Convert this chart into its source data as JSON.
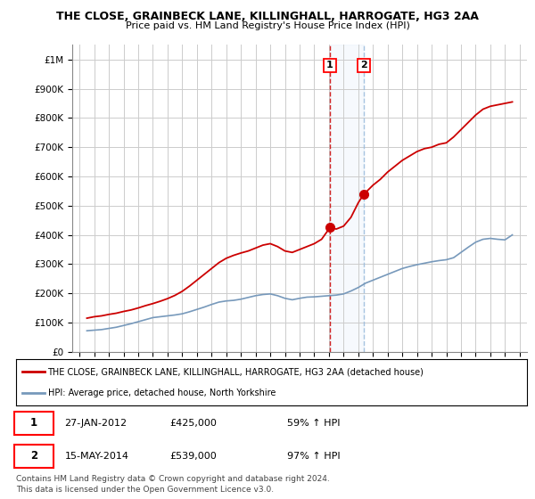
{
  "title": "THE CLOSE, GRAINBECK LANE, KILLINGHALL, HARROGATE, HG3 2AA",
  "subtitle": "Price paid vs. HM Land Registry's House Price Index (HPI)",
  "ylabel_ticks": [
    "£0",
    "£100K",
    "£200K",
    "£300K",
    "£400K",
    "£500K",
    "£600K",
    "£700K",
    "£800K",
    "£900K",
    "£1M"
  ],
  "ytick_values": [
    0,
    100000,
    200000,
    300000,
    400000,
    500000,
    600000,
    700000,
    800000,
    900000,
    1000000
  ],
  "ylim": [
    0,
    1050000
  ],
  "xlim_start": 1994.5,
  "xlim_end": 2025.5,
  "red_line_color": "#cc0000",
  "blue_line_color": "#7799bb",
  "point1_x": 2012.07,
  "point1_y": 425000,
  "point2_x": 2014.37,
  "point2_y": 539000,
  "legend_line1": "THE CLOSE, GRAINBECK LANE, KILLINGHALL, HARROGATE, HG3 2AA (detached house)",
  "legend_line2": "HPI: Average price, detached house, North Yorkshire",
  "table_row1": [
    "1",
    "27-JAN-2012",
    "£425,000",
    "59% ↑ HPI"
  ],
  "table_row2": [
    "2",
    "15-MAY-2014",
    "£539,000",
    "97% ↑ HPI"
  ],
  "footer": "Contains HM Land Registry data © Crown copyright and database right 2024.\nThis data is licensed under the Open Government Licence v3.0.",
  "red_data_x": [
    1995.5,
    1996.0,
    1996.5,
    1997.0,
    1997.5,
    1998.0,
    1998.5,
    1999.0,
    1999.5,
    2000.0,
    2000.5,
    2001.0,
    2001.5,
    2002.0,
    2002.5,
    2003.0,
    2003.5,
    2004.0,
    2004.5,
    2005.0,
    2005.5,
    2006.0,
    2006.5,
    2007.0,
    2007.5,
    2008.0,
    2008.5,
    2009.0,
    2009.5,
    2010.0,
    2010.5,
    2011.0,
    2011.5,
    2012.07,
    2012.5,
    2013.0,
    2013.5,
    2014.0,
    2014.37,
    2014.5,
    2015.0,
    2015.5,
    2016.0,
    2016.5,
    2017.0,
    2017.5,
    2018.0,
    2018.5,
    2019.0,
    2019.5,
    2020.0,
    2020.5,
    2021.0,
    2021.5,
    2022.0,
    2022.5,
    2023.0,
    2023.5,
    2024.0,
    2024.5
  ],
  "red_data_y": [
    115000,
    120000,
    123000,
    128000,
    132000,
    138000,
    143000,
    150000,
    158000,
    165000,
    173000,
    182000,
    193000,
    207000,
    225000,
    245000,
    265000,
    285000,
    305000,
    320000,
    330000,
    338000,
    345000,
    355000,
    365000,
    370000,
    360000,
    345000,
    340000,
    350000,
    360000,
    370000,
    385000,
    425000,
    420000,
    430000,
    460000,
    510000,
    539000,
    545000,
    570000,
    590000,
    615000,
    635000,
    655000,
    670000,
    685000,
    695000,
    700000,
    710000,
    715000,
    735000,
    760000,
    785000,
    810000,
    830000,
    840000,
    845000,
    850000,
    855000
  ],
  "blue_data_x": [
    1995.5,
    1996.0,
    1996.5,
    1997.0,
    1997.5,
    1998.0,
    1998.5,
    1999.0,
    1999.5,
    2000.0,
    2000.5,
    2001.0,
    2001.5,
    2002.0,
    2002.5,
    2003.0,
    2003.5,
    2004.0,
    2004.5,
    2005.0,
    2005.5,
    2006.0,
    2006.5,
    2007.0,
    2007.5,
    2008.0,
    2008.5,
    2009.0,
    2009.5,
    2010.0,
    2010.5,
    2011.0,
    2011.5,
    2012.0,
    2012.5,
    2013.0,
    2013.5,
    2014.0,
    2014.5,
    2015.0,
    2015.5,
    2016.0,
    2016.5,
    2017.0,
    2017.5,
    2018.0,
    2018.5,
    2019.0,
    2019.5,
    2020.0,
    2020.5,
    2021.0,
    2021.5,
    2022.0,
    2022.5,
    2023.0,
    2023.5,
    2024.0,
    2024.5
  ],
  "blue_data_y": [
    72000,
    74000,
    76000,
    80000,
    84000,
    90000,
    96000,
    103000,
    110000,
    117000,
    120000,
    123000,
    126000,
    130000,
    137000,
    145000,
    153000,
    162000,
    170000,
    174000,
    176000,
    180000,
    186000,
    192000,
    196000,
    198000,
    192000,
    183000,
    178000,
    183000,
    187000,
    188000,
    190000,
    192000,
    194000,
    198000,
    208000,
    220000,
    235000,
    245000,
    255000,
    265000,
    275000,
    285000,
    292000,
    298000,
    303000,
    308000,
    312000,
    315000,
    322000,
    340000,
    358000,
    375000,
    385000,
    388000,
    385000,
    383000,
    400000
  ]
}
